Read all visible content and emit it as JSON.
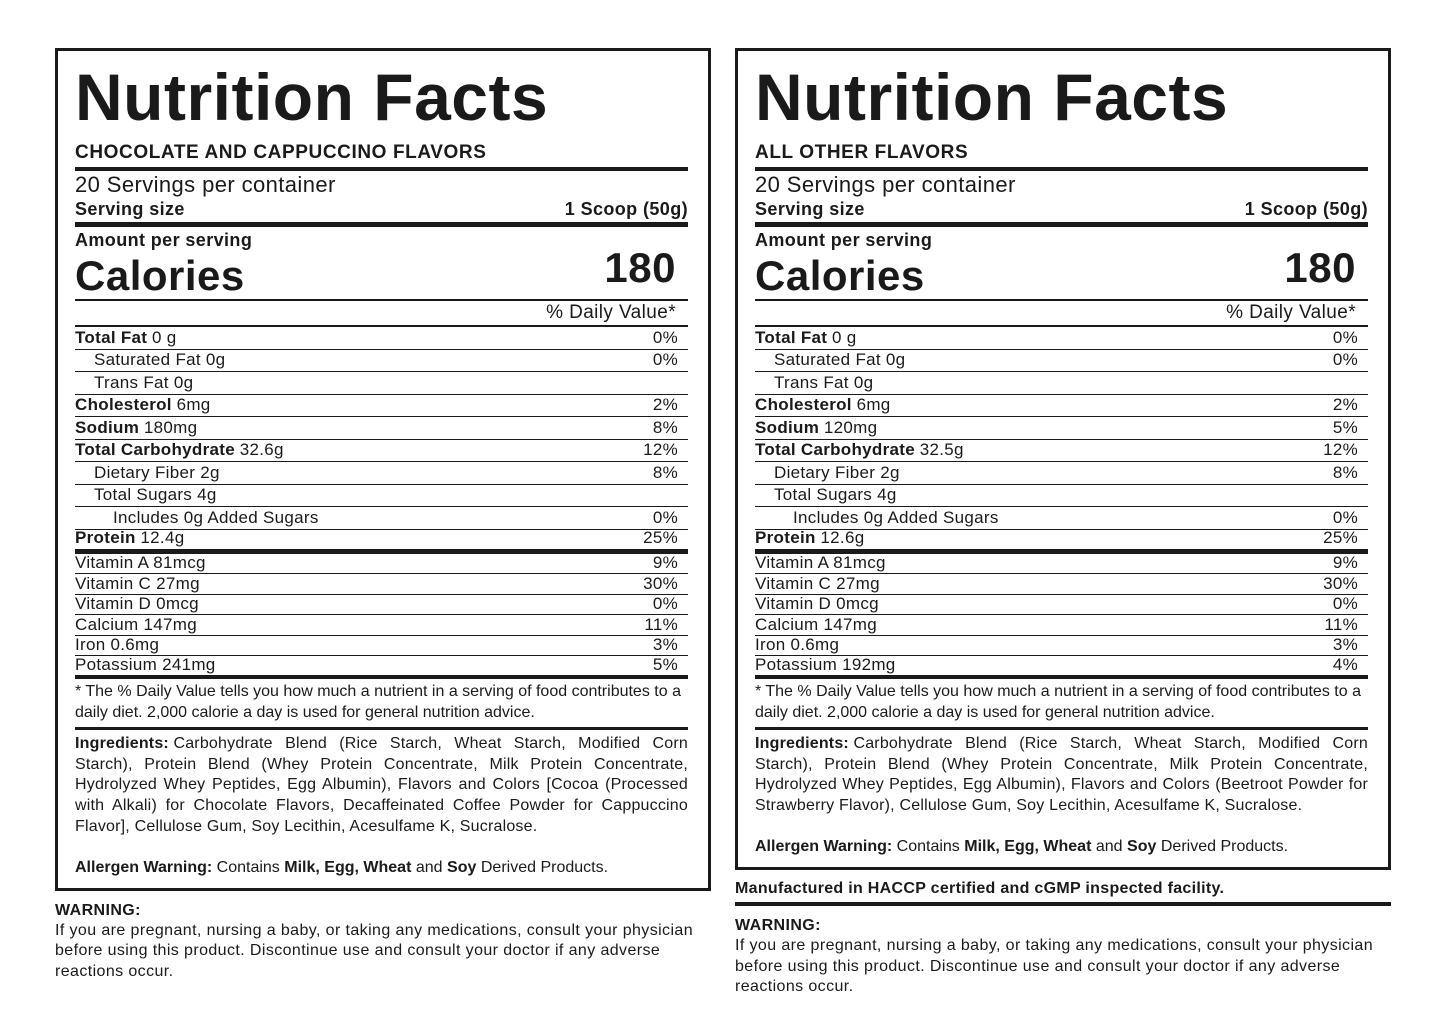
{
  "labels": [
    {
      "title": "Nutrition Facts",
      "subtitle": "CHOCOLATE AND CAPPUCCINO FLAVORS",
      "servings": "20 Servings per container",
      "serving_size_label": "Serving size",
      "serving_size": "1 Scoop (50g)",
      "amount_label": "Amount per serving",
      "calories_label": "Calories",
      "calories": "180",
      "dv_header": "% Daily Value*",
      "nutrients": [
        {
          "name": "Total Fat",
          "amount": "0 g",
          "dv": "0%",
          "sub": [
            {
              "name": "Saturated Fat 0g",
              "dv": "0%"
            },
            {
              "name": "Trans Fat 0g"
            }
          ]
        },
        {
          "name": "Cholesterol",
          "amount": "6mg",
          "dv": "2%"
        },
        {
          "name": "Sodium",
          "amount": "180mg",
          "dv": "8%"
        },
        {
          "name": "Total Carbohydrate",
          "amount": "32.6g",
          "dv": "12%",
          "sub": [
            {
              "name": "Dietary Fiber 2g",
              "dv": "8%"
            },
            {
              "name": "Total Sugars 4g",
              "sub": [
                {
                  "name": "Includes 0g Added Sugars",
                  "dv": "0%"
                }
              ]
            }
          ]
        },
        {
          "name": "Protein",
          "amount": "12.4g",
          "dv": "25%"
        }
      ],
      "vitamins": [
        {
          "name": "Vitamin A 81mcg",
          "dv": "9%"
        },
        {
          "name": "Vitamin C 27mg",
          "dv": "30%"
        },
        {
          "name": "Vitamin D 0mcg",
          "dv": "0%"
        },
        {
          "name": "Calcium 147mg",
          "dv": "11%"
        },
        {
          "name": "Iron 0.6mg",
          "dv": "3%"
        },
        {
          "name": "Potassium 241mg",
          "dv": "5%"
        }
      ],
      "footnote": "* The % Daily Value tells you how much a nutrient in a serving of food contributes to a daily diet. 2,000 calorie a day is used for general nutrition advice.",
      "ingredients_label": "Ingredients:",
      "ingredients": "Carbohydrate Blend (Rice Starch, Wheat Starch, Modified Corn Starch), Protein Blend (Whey Protein Concentrate, Milk Protein Concentrate, Hydrolyzed Whey Peptides, Egg Albumin), Flavors and Colors [Cocoa (Processed with Alkali) for Chocolate Flavors, Decaffeinated Coffee Powder for Cappuccino Flavor], Cellulose Gum, Soy Lecithin, Acesulfame K, Sucralose.",
      "allergen": [
        "Allergen Warning:",
        "Contains",
        "Milk, Egg, Wheat",
        "and",
        "Soy",
        "Derived Products."
      ],
      "warning_title": "WARNING:",
      "warning": "If you are pregnant, nursing a baby, or taking any medications, consult your physician before using this product. Discontinue use and consult your doctor if any adverse reactions occur."
    },
    {
      "title": "Nutrition Facts",
      "subtitle": "ALL OTHER FLAVORS",
      "servings": "20 Servings per container",
      "serving_size_label": "Serving size",
      "serving_size": "1 Scoop (50g)",
      "amount_label": "Amount per serving",
      "calories_label": "Calories",
      "calories": "180",
      "dv_header": "% Daily Value*",
      "nutrients": [
        {
          "name": "Total Fat",
          "amount": "0 g",
          "dv": "0%",
          "sub": [
            {
              "name": "Saturated Fat 0g",
              "dv": "0%"
            },
            {
              "name": "Trans Fat 0g"
            }
          ]
        },
        {
          "name": "Cholesterol",
          "amount": "6mg",
          "dv": "2%"
        },
        {
          "name": "Sodium",
          "amount": "120mg",
          "dv": "5%"
        },
        {
          "name": "Total Carbohydrate",
          "amount": "32.5g",
          "dv": "12%",
          "sub": [
            {
              "name": "Dietary Fiber 2g",
              "dv": "8%"
            },
            {
              "name": "Total Sugars 4g",
              "sub": [
                {
                  "name": "Includes 0g Added Sugars",
                  "dv": "0%"
                }
              ]
            }
          ]
        },
        {
          "name": "Protein",
          "amount": "12.6g",
          "dv": "25%"
        }
      ],
      "vitamins": [
        {
          "name": "Vitamin A 81mcg",
          "dv": "9%"
        },
        {
          "name": "Vitamin C 27mg",
          "dv": "30%"
        },
        {
          "name": "Vitamin D 0mcg",
          "dv": "0%"
        },
        {
          "name": "Calcium 147mg",
          "dv": "11%"
        },
        {
          "name": "Iron 0.6mg",
          "dv": "3%"
        },
        {
          "name": "Potassium 192mg",
          "dv": "4%"
        }
      ],
      "footnote": "* The % Daily Value tells you how much a nutrient in a serving of food contributes to a daily diet. 2,000 calorie a day is used for general nutrition advice.",
      "ingredients_label": "Ingredients:",
      "ingredients": "Carbohydrate Blend (Rice Starch, Wheat Starch, Modified Corn Starch), Protein Blend (Whey Protein Concentrate, Milk Protein Concentrate, Hydrolyzed Whey Peptides, Egg Albumin), Flavors and Colors (Beetroot Powder for Strawberry Flavor), Cellulose Gum, Soy Lecithin, Acesulfame K, Sucralose.",
      "allergen": [
        "Allergen Warning:",
        "Contains",
        "Milk, Egg, Wheat",
        "and",
        "Soy",
        "Derived Products."
      ],
      "facility": "Manufactured in HACCP certified and cGMP inspected facility.",
      "warning_title": "WARNING:",
      "warning": "If you are pregnant, nursing a baby, or taking any medications, consult your physician before using this product. Discontinue use and consult your doctor if any adverse reactions occur."
    }
  ]
}
